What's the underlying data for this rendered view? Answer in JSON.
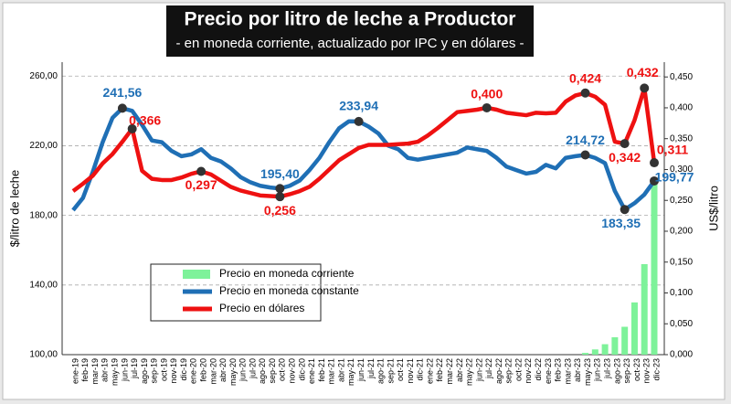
{
  "chart_data": {
    "type": "combo",
    "title": "Precio por litro de leche a Productor",
    "subtitle": "- en moneda corriente, actualizado por IPC y en dólares -",
    "ylabel": "$/litro de leche",
    "y2label": "US$/litro",
    "categories": [
      "ene-19",
      "feb-19",
      "mar-19",
      "abr-19",
      "may-19",
      "jun-19",
      "jul-19",
      "ago-19",
      "sep-19",
      "oct-19",
      "nov-19",
      "dic-19",
      "ene-20",
      "feb-20",
      "mar-20",
      "abr-20",
      "may-20",
      "jun-20",
      "jul-20",
      "ago-20",
      "sep-20",
      "oct-20",
      "nov-20",
      "dic-20",
      "ene-21",
      "feb-21",
      "mar-21",
      "abr-21",
      "may-21",
      "jun-21",
      "jul-21",
      "ago-21",
      "sep-21",
      "oct-21",
      "nov-21",
      "dic-21",
      "ene-22",
      "feb-22",
      "mar-22",
      "abr-22",
      "may-22",
      "jun-22",
      "jul-22",
      "ago-22",
      "sep-22",
      "oct-22",
      "nov-22",
      "dic-22",
      "ene-23",
      "feb-23",
      "mar-23",
      "abr-23",
      "may-23",
      "jun-23",
      "jul-23",
      "ago-23",
      "sep-23",
      "oct-23",
      "nov-23",
      "dic-23"
    ],
    "ylim": [
      100,
      268
    ],
    "yticks": [
      {
        "value": 100,
        "label": "100,00"
      },
      {
        "value": 140,
        "label": "140,00"
      },
      {
        "value": 180,
        "label": "180,00"
      },
      {
        "value": 220,
        "label": "220,00"
      },
      {
        "value": 260,
        "label": "260,00"
      }
    ],
    "y2lim": [
      0,
      0.474
    ],
    "y2ticks": [
      {
        "value": 0,
        "label": "0,000"
      },
      {
        "value": 0.05,
        "label": "0,050"
      },
      {
        "value": 0.1,
        "label": "0,100"
      },
      {
        "value": 0.15,
        "label": "0,150"
      },
      {
        "value": 0.2,
        "label": "0,200"
      },
      {
        "value": 0.25,
        "label": "0,250"
      },
      {
        "value": 0.3,
        "label": "0,300"
      },
      {
        "value": 0.35,
        "label": "0,350"
      },
      {
        "value": 0.4,
        "label": "0,400"
      },
      {
        "value": 0.45,
        "label": "0,450"
      }
    ],
    "grid": true,
    "series": [
      {
        "name": "Precio en moneda corriente",
        "kind": "bar",
        "color": "#7ef29a",
        "values": [
          null,
          null,
          null,
          null,
          null,
          null,
          null,
          null,
          null,
          null,
          null,
          null,
          null,
          null,
          null,
          null,
          null,
          null,
          null,
          null,
          null,
          null,
          null,
          null,
          null,
          null,
          null,
          null,
          null,
          null,
          null,
          null,
          null,
          null,
          null,
          null,
          null,
          null,
          null,
          null,
          null,
          null,
          null,
          null,
          null,
          null,
          null,
          null,
          null,
          null,
          null,
          null,
          101,
          103,
          106,
          110,
          116,
          130,
          152,
          199.77
        ]
      },
      {
        "name": "Precio en moneda constante",
        "kind": "line",
        "color": "#1f6fb5",
        "values": [
          183,
          190,
          205,
          222,
          236,
          241.56,
          240,
          232,
          223,
          222,
          217,
          214,
          215,
          218,
          213,
          211,
          207,
          202,
          199,
          197,
          196,
          195.4,
          197,
          200,
          206,
          213,
          222,
          230,
          234,
          233.94,
          231,
          227,
          220,
          218,
          213,
          212,
          213,
          214,
          215,
          216,
          219,
          218,
          217,
          213,
          208,
          206,
          204,
          205,
          209,
          207,
          213,
          214,
          214.72,
          213,
          210,
          194,
          183.35,
          187,
          192,
          199.77
        ],
        "value_labels": [
          null,
          null,
          null,
          null,
          null,
          "241,56",
          null,
          null,
          null,
          null,
          null,
          null,
          null,
          null,
          null,
          null,
          null,
          null,
          null,
          null,
          null,
          "195,40",
          null,
          null,
          null,
          null,
          null,
          null,
          null,
          "233,94",
          null,
          null,
          null,
          null,
          null,
          null,
          null,
          null,
          null,
          null,
          null,
          null,
          null,
          null,
          null,
          null,
          null,
          null,
          null,
          null,
          null,
          null,
          "214,72",
          null,
          null,
          null,
          "183,35",
          null,
          null,
          "199,77"
        ]
      },
      {
        "name": "Precio en dólares",
        "kind": "line",
        "axis": "y2",
        "color": "#ee1111",
        "values": [
          0.265,
          0.277,
          0.29,
          0.31,
          0.325,
          0.345,
          0.366,
          0.298,
          0.285,
          0.283,
          0.283,
          0.287,
          0.293,
          0.297,
          0.292,
          0.282,
          0.272,
          0.266,
          0.262,
          0.258,
          0.257,
          0.256,
          0.26,
          0.265,
          0.272,
          0.285,
          0.3,
          0.315,
          0.325,
          0.335,
          0.34,
          0.34,
          0.34,
          0.341,
          0.342,
          0.345,
          0.355,
          0.367,
          0.38,
          0.393,
          0.395,
          0.397,
          0.4,
          0.397,
          0.392,
          0.39,
          0.388,
          0.392,
          0.391,
          0.392,
          0.41,
          0.42,
          0.424,
          0.418,
          0.405,
          0.345,
          0.342,
          0.38,
          0.432,
          0.311
        ],
        "value_labels": [
          null,
          null,
          null,
          null,
          null,
          null,
          "0,366",
          null,
          null,
          null,
          null,
          null,
          null,
          "0,297",
          null,
          null,
          null,
          null,
          null,
          null,
          null,
          "0,256",
          null,
          null,
          null,
          null,
          null,
          null,
          null,
          null,
          null,
          null,
          null,
          null,
          null,
          null,
          null,
          null,
          null,
          null,
          null,
          null,
          "0,400",
          null,
          null,
          null,
          null,
          null,
          null,
          null,
          null,
          null,
          "0,424",
          null,
          null,
          null,
          "0,342",
          null,
          "0,432",
          "0,311"
        ]
      }
    ]
  }
}
